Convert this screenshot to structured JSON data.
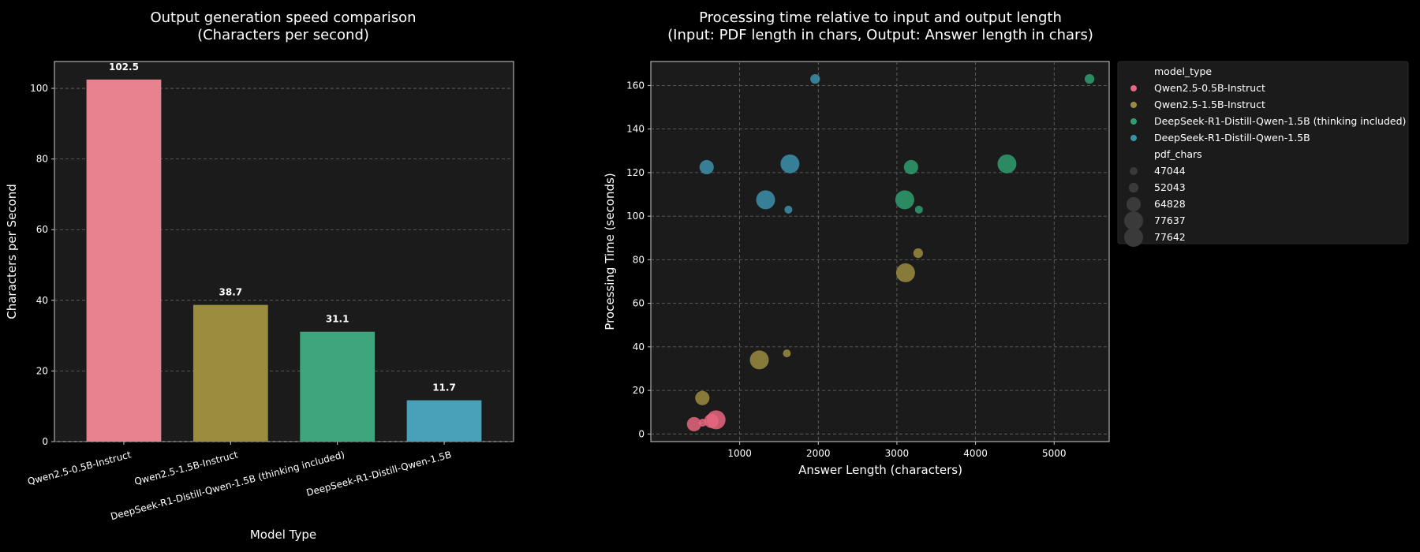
{
  "chart_data": [
    {
      "type": "bar",
      "title": "Output generation speed comparison",
      "subtitle": "(Characters per second)",
      "xlabel": "Model Type",
      "ylabel": "Characters per Second",
      "categories": [
        "Qwen2.5-0.5B-Instruct",
        "Qwen2.5-1.5B-Instruct",
        "DeepSeek-R1-Distill-Qwen-1.5B (thinking included)",
        "DeepSeek-R1-Distill-Qwen-1.5B"
      ],
      "values": [
        102.5,
        38.7,
        31.1,
        11.7
      ],
      "value_labels": [
        "102.5",
        "38.7",
        "31.1",
        "11.7"
      ],
      "colors": [
        "#e8828f",
        "#9b8c3e",
        "#3fa57c",
        "#49a1b9"
      ],
      "ylim": [
        0,
        107.6
      ],
      "yticks": [
        0,
        20,
        40,
        60,
        80,
        100
      ],
      "grid": true
    },
    {
      "type": "scatter",
      "title": "Processing time relative to input and output length",
      "subtitle": "(Input: PDF length in chars, Output: Answer length in chars)",
      "xlabel": "Answer Length (characters)",
      "ylabel": "Processing Time (seconds)",
      "xlim": [
        -130,
        5700
      ],
      "ylim": [
        -3.5,
        171
      ],
      "xticks": [
        1000,
        2000,
        3000,
        4000,
        5000
      ],
      "yticks": [
        0,
        20,
        40,
        60,
        80,
        100,
        120,
        140,
        160
      ],
      "grid": true,
      "legend_position": "outside-top-right",
      "legend_hue_title": "model_type",
      "legend_size_title": "pdf_chars",
      "size_legend": [
        {
          "label": "47044",
          "value": 47044
        },
        {
          "label": "52043",
          "value": 52043
        },
        {
          "label": "64828",
          "value": 64828
        },
        {
          "label": "77637",
          "value": 77637
        },
        {
          "label": "77642",
          "value": 77642
        }
      ],
      "series": [
        {
          "name": "Qwen2.5-0.5B-Instruct",
          "color": "#e8667f",
          "points": [
            {
              "x": 420,
              "y": 4.5,
              "pdf_chars": 64828
            },
            {
              "x": 530,
              "y": 5.2,
              "pdf_chars": 47044
            },
            {
              "x": 640,
              "y": 6.0,
              "pdf_chars": 64828
            },
            {
              "x": 700,
              "y": 6.5,
              "pdf_chars": 77642
            }
          ]
        },
        {
          "name": "Qwen2.5-1.5B-Instruct",
          "color": "#9b8c3e",
          "points": [
            {
              "x": 525,
              "y": 16.5,
              "pdf_chars": 64828
            },
            {
              "x": 1250,
              "y": 34,
              "pdf_chars": 77642
            },
            {
              "x": 1600,
              "y": 37,
              "pdf_chars": 47044
            },
            {
              "x": 3110,
              "y": 74,
              "pdf_chars": 77637
            },
            {
              "x": 3270,
              "y": 83,
              "pdf_chars": 52043
            }
          ]
        },
        {
          "name": "DeepSeek-R1-Distill-Qwen-1.5B (thinking included)",
          "color": "#2e9d6f",
          "points": [
            {
              "x": 3100,
              "y": 107.5,
              "pdf_chars": 77642
            },
            {
              "x": 3280,
              "y": 103,
              "pdf_chars": 47044
            },
            {
              "x": 3180,
              "y": 122.5,
              "pdf_chars": 64828
            },
            {
              "x": 4400,
              "y": 124,
              "pdf_chars": 77637
            },
            {
              "x": 5450,
              "y": 163,
              "pdf_chars": 52043
            }
          ]
        },
        {
          "name": "DeepSeek-R1-Distill-Qwen-1.5B",
          "color": "#3c91ab",
          "points": [
            {
              "x": 580,
              "y": 122.5,
              "pdf_chars": 64828
            },
            {
              "x": 1330,
              "y": 107.5,
              "pdf_chars": 77642
            },
            {
              "x": 1620,
              "y": 103,
              "pdf_chars": 47044
            },
            {
              "x": 1640,
              "y": 124,
              "pdf_chars": 77637
            },
            {
              "x": 1960,
              "y": 163,
              "pdf_chars": 52043
            }
          ]
        }
      ]
    }
  ]
}
